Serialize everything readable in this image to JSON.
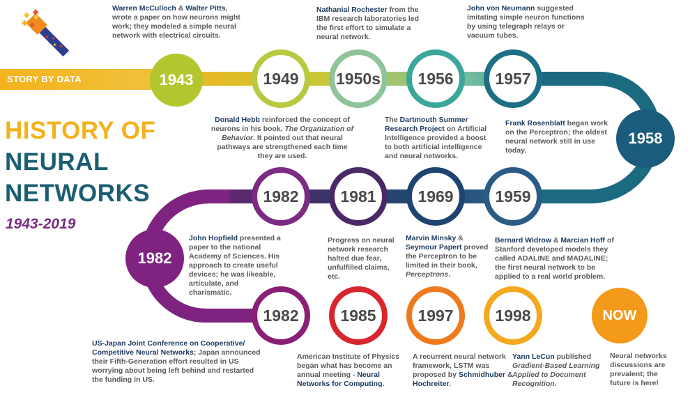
{
  "brand": {
    "banner_label": "STORY BY DATA"
  },
  "title": {
    "line1": "HISTORY OF",
    "line2": "NEURAL",
    "line3": "NETWORKS",
    "years": "1943-2019",
    "colors": {
      "line1": "#f2b21c",
      "line2": "#1b5e73",
      "line3": "#1b5e73",
      "years": "#7a2a80"
    }
  },
  "milestones": [
    {
      "id": "m1943",
      "label": "1943",
      "color": "#b4c62f",
      "style": "solid"
    },
    {
      "id": "m1949",
      "label": "1949",
      "color": "#b9c940",
      "style": "ring"
    },
    {
      "id": "m1950s",
      "label": "1950s",
      "color": "#8fc39a",
      "style": "ring"
    },
    {
      "id": "m1956",
      "label": "1956",
      "color": "#3aa79a",
      "style": "ring"
    },
    {
      "id": "m1957",
      "label": "1957",
      "color": "#1c6f84",
      "style": "ring"
    },
    {
      "id": "m1958",
      "label": "1958",
      "color": "#1b5b7c",
      "style": "solid"
    },
    {
      "id": "m1959",
      "label": "1959",
      "color": "#2b5c86",
      "style": "ring"
    },
    {
      "id": "m1969",
      "label": "1969",
      "color": "#1f4470",
      "style": "ring"
    },
    {
      "id": "m1981",
      "label": "1981",
      "color": "#4a2a66",
      "style": "ring"
    },
    {
      "id": "m1982a",
      "label": "1982",
      "color": "#7c2a82",
      "style": "ring"
    },
    {
      "id": "m1982b",
      "label": "1982",
      "color": "#7f2280",
      "style": "solid"
    },
    {
      "id": "m1982c",
      "label": "1982",
      "color": "#8a1f76",
      "style": "ring"
    },
    {
      "id": "m1985",
      "label": "1985",
      "color": "#d8262f",
      "style": "ring"
    },
    {
      "id": "m1997",
      "label": "1997",
      "color": "#ef7a1e",
      "style": "ring"
    },
    {
      "id": "m1998",
      "label": "1998",
      "color": "#f4a81d",
      "style": "ring"
    },
    {
      "id": "mnow",
      "label": "NOW",
      "color": "#f39a1a",
      "style": "solid"
    }
  ],
  "descriptions": {
    "d1943": {
      "hl1": "Warren McCulloch",
      "amp": " & ",
      "hl2": "Walter Pitts",
      "text": ", wrote a paper on how neurons might work; they modeled a simple neural network with electrical circuits."
    },
    "d1950s": {
      "hl": "Nathanial Rochester",
      "text": " from the IBM research laboratories led the first effort to simulate a neural network."
    },
    "d1957": {
      "hl": "John von Neumann",
      "text": " suggested imitating simple neuron functions by using telegraph relays or vacuum tubes."
    },
    "d1949": {
      "hl": "Donald Hebb",
      "text": " reinforced the concept of neurons in his book, ",
      "it": "The Organization of Behavior",
      "text2": ". It pointed out that neural pathways are strengthened each time they are used."
    },
    "d1956": {
      "pre": "The ",
      "hl": "Dartmouth Summer Research Project",
      "text": " on Artificial Intelligence provided a boost to both artificial intelligence and neural networks."
    },
    "d1958": {
      "hl": "Frank Rosenblatt",
      "text": " began work on the Perceptron; the oldest neural network still in use today."
    },
    "d1982a": {
      "hl": "John Hopfield",
      "text": " presented a paper to the national Academy of Sciences. His approach to create useful devices; he was likeable, articulate, and charismatic."
    },
    "d1981": {
      "text": "Progress on neural network research halted due fear, unfulfilled claims, etc."
    },
    "d1969": {
      "hl1": "Marvin Minsky",
      "amp": " & ",
      "hl2": "Seymour Papert",
      "text": " proved the Perceptron to be limited in their book, ",
      "it": "Perceptrons",
      "text2": "."
    },
    "d1959": {
      "hl1": "Bernard Widrow",
      "amp": " & ",
      "hl2": "Marcian Hoff",
      "text": " of Stanford developed models they called ADALINE and MADALINE; the first neural network to be applied to a real world problem."
    },
    "d1982c": {
      "hl": "US-Japan Joint Conference on Cooperative/ Competitive Neural Networks",
      "text": "; Japan announced their Fifth-Generation effort resulted in US worrying about being left behind and restarted the funding in US."
    },
    "d1985": {
      "text": "American Institute of Physics began what has become an annual meeting - ",
      "hl": "Neural Networks for Computing",
      "text2": "."
    },
    "d1997": {
      "text": "A recurrent neural network framework, LSTM was proposed by ",
      "hl1": "Schmidhuber",
      "amp": " & ",
      "hl2": "Hochreiter",
      "text2": "."
    },
    "d1998": {
      "hl": "Yann LeCun",
      "text": " published ",
      "it": "Gradient-Based Learning Applied to Document Recognition",
      "text2": "."
    },
    "dnow": {
      "text": "Neural networks discussions are prevalent; the future is here!"
    }
  }
}
